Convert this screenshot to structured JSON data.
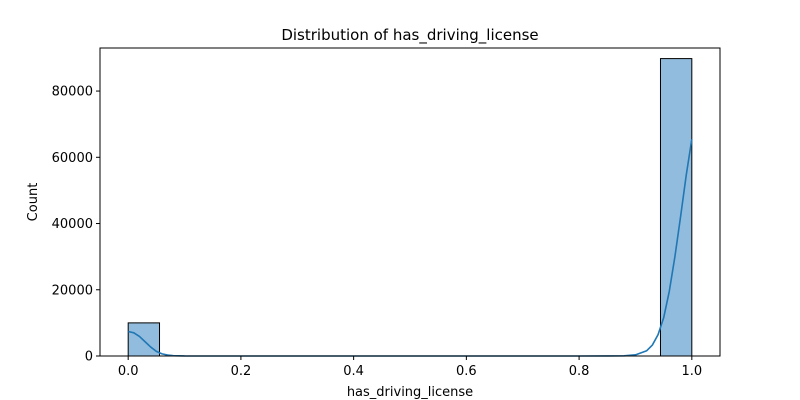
{
  "chart_data": {
    "type": "histogram",
    "title": "Distribution of has_driving_license",
    "xlabel": "has_driving_license",
    "ylabel": "Count",
    "xlim": [
      -0.05,
      1.05
    ],
    "ylim": [
      0,
      93000
    ],
    "x_ticks": [
      0.0,
      0.2,
      0.4,
      0.6,
      0.8,
      1.0
    ],
    "x_tick_labels": [
      "0.0",
      "0.2",
      "0.4",
      "0.6",
      "0.8",
      "1.0"
    ],
    "y_ticks": [
      0,
      20000,
      40000,
      60000,
      80000
    ],
    "y_tick_labels": [
      "0",
      "20000",
      "40000",
      "60000",
      "80000"
    ],
    "bins": [
      {
        "x0": 0.0,
        "x1": 0.0556,
        "count": 10000
      },
      {
        "x0": 0.9444,
        "x1": 1.0,
        "count": 89800
      }
    ],
    "kde": {
      "x": [
        0.0,
        0.01,
        0.02,
        0.03,
        0.04,
        0.05,
        0.06,
        0.07,
        0.08,
        0.1,
        0.15,
        0.2,
        0.4,
        0.6,
        0.8,
        0.85,
        0.88,
        0.9,
        0.92,
        0.93,
        0.94,
        0.95,
        0.96,
        0.97,
        0.98,
        0.99,
        1.0
      ],
      "y": [
        7400,
        7000,
        5900,
        4300,
        2700,
        1400,
        650,
        280,
        100,
        15,
        0,
        0,
        0,
        0,
        0,
        5,
        60,
        350,
        1600,
        3300,
        6400,
        11500,
        19500,
        30000,
        42000,
        54500,
        65500
      ]
    },
    "colors": {
      "bar_fill": "#92bcdd",
      "bar_edge": "#000000",
      "kde_line": "#1f77b4"
    },
    "grid": false,
    "legend": "none"
  }
}
